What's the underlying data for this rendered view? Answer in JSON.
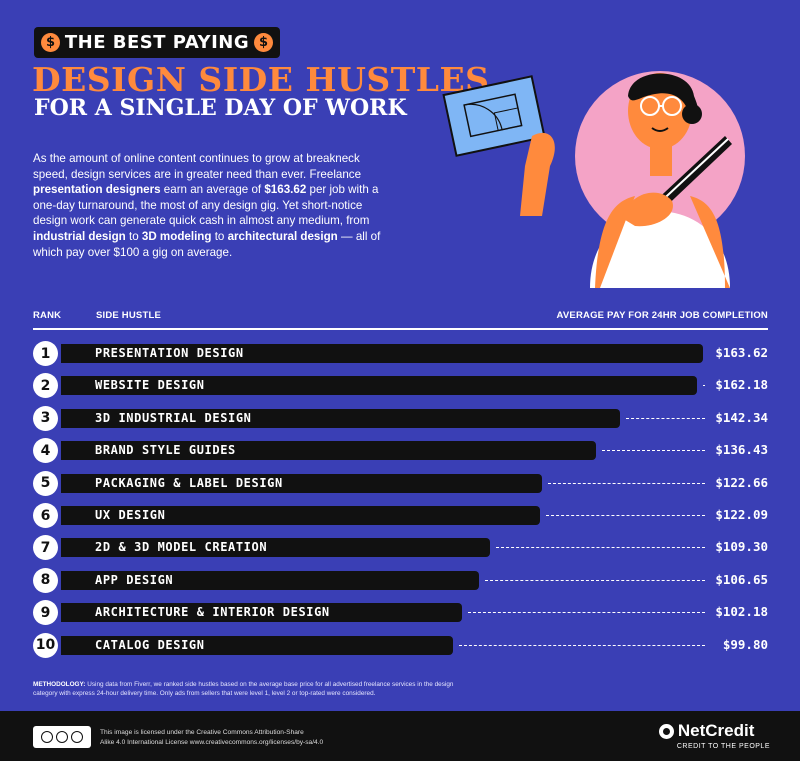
{
  "badge": {
    "text": "THE BEST PAYING",
    "coin_symbol": "$"
  },
  "title": "DESIGN SIDE HUSTLES",
  "subtitle": "FOR A SINGLE DAY OF WORK",
  "intro": {
    "p1": "As the amount of online content continues to grow at breakneck speed, design services are in greater need than ever. Freelance ",
    "b1": "presentation designers",
    "p2": " earn an average of ",
    "b2": "$163.62",
    "p3": " per job with a one-day turnaround, the most of any design gig. Yet short-notice design work can generate quick cash in almost any medium, from ",
    "b3": "industrial design",
    "p4": " to ",
    "b4": "3D modeling",
    "p5": " to ",
    "b5": "architectural design",
    "p6": " — all of which pay over $100 a gig on average."
  },
  "columns": {
    "rank": "RANK",
    "hustle": "SIDE HUSTLE",
    "pay": "AVERAGE PAY FOR 24HR JOB COMPLETION"
  },
  "chart_data": {
    "type": "bar",
    "orientation": "horizontal",
    "categories": [
      "PRESENTATION DESIGN",
      "WEBSITE DESIGN",
      "3D INDUSTRIAL DESIGN",
      "BRAND STYLE GUIDES",
      "PACKAGING & LABEL DESIGN",
      "UX DESIGN",
      "2D & 3D MODEL CREATION",
      "APP DESIGN",
      "ARCHITECTURE & INTERIOR DESIGN",
      "CATALOG DESIGN"
    ],
    "ranks": [
      "1",
      "2",
      "3",
      "4",
      "5",
      "6",
      "7",
      "8",
      "9",
      "10"
    ],
    "values": [
      163.62,
      162.18,
      142.34,
      136.43,
      122.66,
      122.09,
      109.3,
      106.65,
      102.18,
      99.8
    ],
    "value_labels": [
      "$163.62",
      "$162.18",
      "$142.34",
      "$136.43",
      "$122.66",
      "$122.09",
      "$109.30",
      "$106.65",
      "$102.18",
      "$99.80"
    ],
    "xlim": [
      0,
      170
    ],
    "bar_color": "#111111",
    "background": "#3a3fb5",
    "accent": "#ff8a3d"
  },
  "methodology": {
    "label": "METHODOLOGY:",
    "text": " Using data from Fiverr, we ranked side hustles based on the average base price for all advertised freelance services in the design category with express 24-hour delivery time. Only ads from sellers that were level 1, level 2 or top-rated were considered."
  },
  "footer": {
    "license_line1": "This image is licensed under the Creative Commons Attribution-Share",
    "license_line2": "Alike 4.0 International License www.creativecommons.org/licenses/by-sa/4.0",
    "brand": "NetCredit",
    "tagline": "CREDIT TO THE PEOPLE",
    "cc_icon": "creative-commons-icon"
  }
}
